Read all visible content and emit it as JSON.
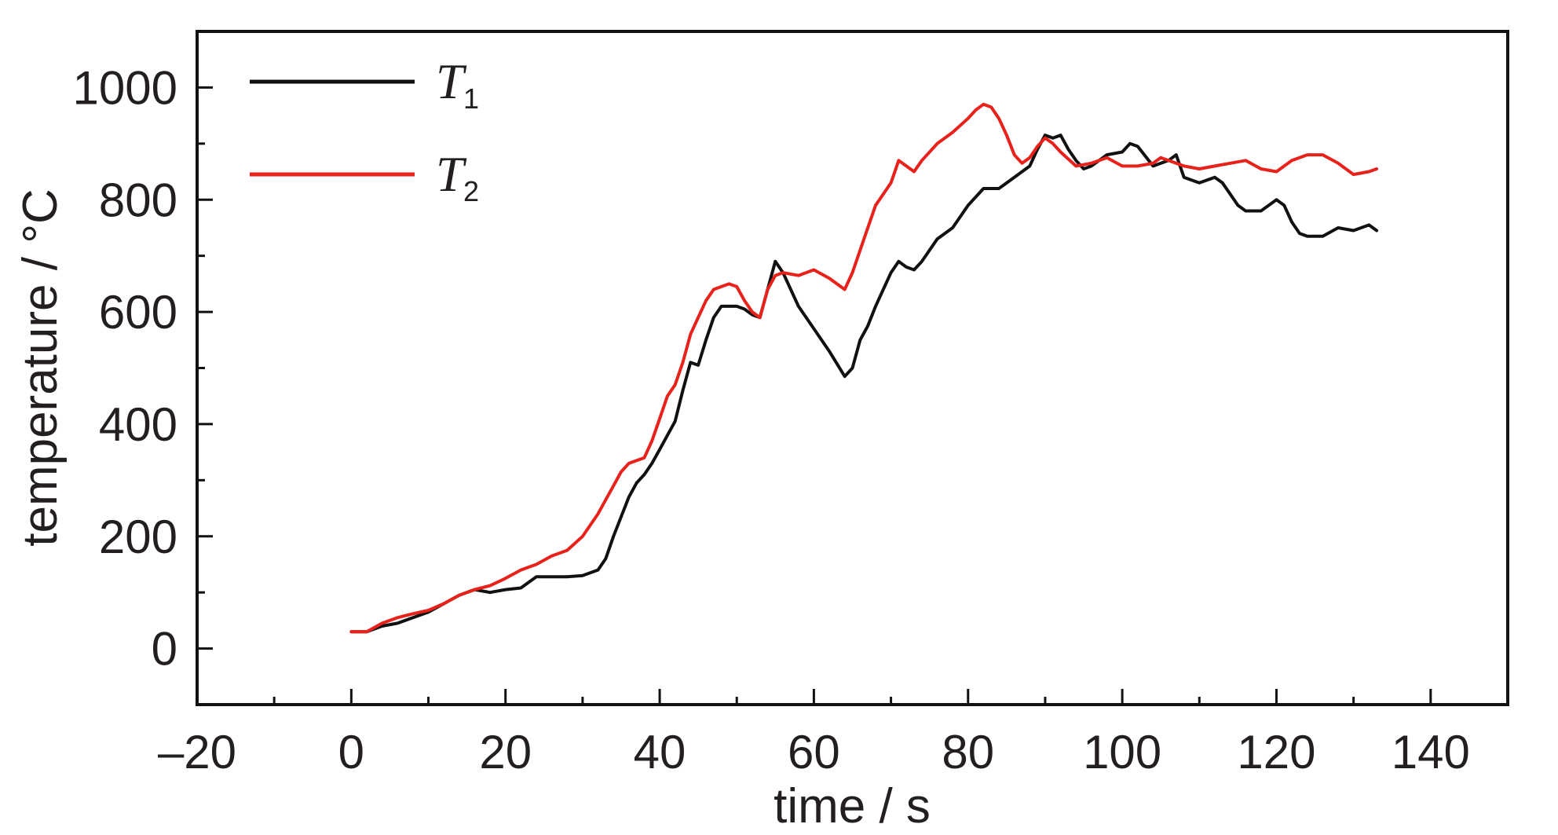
{
  "chart_data": {
    "type": "line",
    "xlabel": "time / s",
    "ylabel": "temperature / °C",
    "xlim": [
      -20,
      150
    ],
    "ylim": [
      -100,
      1100
    ],
    "xticks": [
      -20,
      0,
      20,
      40,
      60,
      80,
      100,
      120,
      140
    ],
    "xtick_labels": [
      "–20",
      "0",
      "20",
      "40",
      "60",
      "80",
      "100",
      "120",
      "140"
    ],
    "yticks": [
      0,
      200,
      400,
      600,
      800,
      1000
    ],
    "ytick_labels": [
      "0",
      "200",
      "400",
      "600",
      "800",
      "1000"
    ],
    "grid": false,
    "legend_position": "top-left",
    "series": [
      {
        "name": "T",
        "subscript": "1",
        "color": "#111111",
        "points": [
          [
            0,
            30
          ],
          [
            2,
            30
          ],
          [
            4,
            40
          ],
          [
            6,
            45
          ],
          [
            8,
            55
          ],
          [
            10,
            65
          ],
          [
            12,
            80
          ],
          [
            14,
            95
          ],
          [
            16,
            105
          ],
          [
            18,
            100
          ],
          [
            20,
            105
          ],
          [
            22,
            108
          ],
          [
            24,
            128
          ],
          [
            26,
            128
          ],
          [
            28,
            128
          ],
          [
            30,
            130
          ],
          [
            32,
            140
          ],
          [
            33,
            160
          ],
          [
            34,
            200
          ],
          [
            35,
            235
          ],
          [
            36,
            270
          ],
          [
            37,
            295
          ],
          [
            38,
            310
          ],
          [
            39,
            330
          ],
          [
            40,
            355
          ],
          [
            41,
            380
          ],
          [
            42,
            405
          ],
          [
            43,
            460
          ],
          [
            44,
            510
          ],
          [
            45,
            505
          ],
          [
            46,
            550
          ],
          [
            47,
            590
          ],
          [
            48,
            610
          ],
          [
            50,
            610
          ],
          [
            51,
            605
          ],
          [
            52,
            595
          ],
          [
            53,
            590
          ],
          [
            54,
            640
          ],
          [
            55,
            690
          ],
          [
            56,
            670
          ],
          [
            58,
            610
          ],
          [
            60,
            570
          ],
          [
            62,
            530
          ],
          [
            64,
            485
          ],
          [
            65,
            500
          ],
          [
            66,
            550
          ],
          [
            67,
            575
          ],
          [
            68,
            610
          ],
          [
            70,
            670
          ],
          [
            71,
            690
          ],
          [
            72,
            680
          ],
          [
            73,
            675
          ],
          [
            74,
            690
          ],
          [
            76,
            730
          ],
          [
            78,
            750
          ],
          [
            80,
            790
          ],
          [
            82,
            820
          ],
          [
            84,
            820
          ],
          [
            86,
            840
          ],
          [
            88,
            860
          ],
          [
            89,
            890
          ],
          [
            90,
            915
          ],
          [
            91,
            910
          ],
          [
            92,
            915
          ],
          [
            93,
            890
          ],
          [
            94,
            870
          ],
          [
            95,
            855
          ],
          [
            96,
            860
          ],
          [
            98,
            880
          ],
          [
            100,
            885
          ],
          [
            101,
            900
          ],
          [
            102,
            895
          ],
          [
            104,
            860
          ],
          [
            106,
            870
          ],
          [
            107,
            880
          ],
          [
            108,
            840
          ],
          [
            110,
            830
          ],
          [
            112,
            840
          ],
          [
            113,
            830
          ],
          [
            114,
            810
          ],
          [
            115,
            790
          ],
          [
            116,
            780
          ],
          [
            118,
            780
          ],
          [
            120,
            800
          ],
          [
            121,
            790
          ],
          [
            122,
            760
          ],
          [
            123,
            740
          ],
          [
            124,
            735
          ],
          [
            126,
            735
          ],
          [
            128,
            750
          ],
          [
            130,
            745
          ],
          [
            132,
            755
          ],
          [
            133,
            745
          ]
        ]
      },
      {
        "name": "T",
        "subscript": "2",
        "color": "#e8221b",
        "points": [
          [
            0,
            30
          ],
          [
            2,
            30
          ],
          [
            4,
            45
          ],
          [
            6,
            55
          ],
          [
            8,
            62
          ],
          [
            10,
            68
          ],
          [
            12,
            80
          ],
          [
            14,
            95
          ],
          [
            16,
            105
          ],
          [
            18,
            112
          ],
          [
            20,
            125
          ],
          [
            22,
            140
          ],
          [
            24,
            150
          ],
          [
            26,
            165
          ],
          [
            28,
            175
          ],
          [
            30,
            200
          ],
          [
            32,
            240
          ],
          [
            33,
            265
          ],
          [
            34,
            290
          ],
          [
            35,
            315
          ],
          [
            36,
            330
          ],
          [
            38,
            340
          ],
          [
            39,
            370
          ],
          [
            40,
            410
          ],
          [
            41,
            450
          ],
          [
            42,
            470
          ],
          [
            43,
            510
          ],
          [
            44,
            560
          ],
          [
            45,
            590
          ],
          [
            46,
            620
          ],
          [
            47,
            640
          ],
          [
            48,
            645
          ],
          [
            49,
            650
          ],
          [
            50,
            645
          ],
          [
            51,
            620
          ],
          [
            52,
            600
          ],
          [
            53,
            590
          ],
          [
            54,
            640
          ],
          [
            55,
            665
          ],
          [
            56,
            670
          ],
          [
            58,
            665
          ],
          [
            60,
            675
          ],
          [
            62,
            660
          ],
          [
            64,
            640
          ],
          [
            65,
            670
          ],
          [
            66,
            710
          ],
          [
            67,
            750
          ],
          [
            68,
            790
          ],
          [
            70,
            830
          ],
          [
            71,
            870
          ],
          [
            72,
            860
          ],
          [
            73,
            850
          ],
          [
            74,
            870
          ],
          [
            76,
            900
          ],
          [
            78,
            920
          ],
          [
            80,
            945
          ],
          [
            81,
            960
          ],
          [
            82,
            970
          ],
          [
            83,
            965
          ],
          [
            84,
            945
          ],
          [
            85,
            915
          ],
          [
            86,
            880
          ],
          [
            87,
            865
          ],
          [
            88,
            875
          ],
          [
            89,
            895
          ],
          [
            90,
            910
          ],
          [
            91,
            900
          ],
          [
            92,
            885
          ],
          [
            94,
            860
          ],
          [
            96,
            865
          ],
          [
            98,
            875
          ],
          [
            100,
            860
          ],
          [
            102,
            860
          ],
          [
            104,
            865
          ],
          [
            105,
            875
          ],
          [
            106,
            870
          ],
          [
            108,
            860
          ],
          [
            110,
            855
          ],
          [
            112,
            860
          ],
          [
            114,
            865
          ],
          [
            116,
            870
          ],
          [
            118,
            855
          ],
          [
            120,
            850
          ],
          [
            122,
            870
          ],
          [
            124,
            880
          ],
          [
            126,
            880
          ],
          [
            128,
            865
          ],
          [
            130,
            845
          ],
          [
            132,
            850
          ],
          [
            133,
            855
          ]
        ]
      }
    ]
  }
}
